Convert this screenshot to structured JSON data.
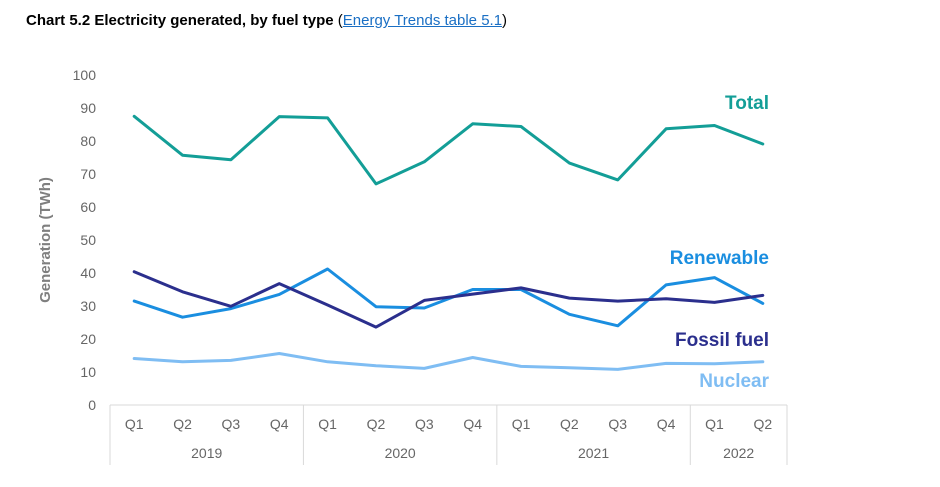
{
  "header": {
    "title_bold": "Chart 5.2 Electricity generated, by fuel type",
    "open_paren": " (",
    "link_text": "Energy Trends table 5.1",
    "close_paren": ")"
  },
  "chart_data": {
    "type": "line",
    "ylabel": "Generation (TWh)",
    "xlabel": "",
    "ylim": [
      0,
      100
    ],
    "yticks": [
      0,
      10,
      20,
      30,
      40,
      50,
      60,
      70,
      80,
      90,
      100
    ],
    "grid": false,
    "categories": [
      "Q1",
      "Q2",
      "Q3",
      "Q4",
      "Q1",
      "Q2",
      "Q3",
      "Q4",
      "Q1",
      "Q2",
      "Q3",
      "Q4",
      "Q1",
      "Q2"
    ],
    "years": [
      {
        "label": "2019",
        "count": 4
      },
      {
        "label": "2020",
        "count": 4
      },
      {
        "label": "2021",
        "count": 4
      },
      {
        "label": "2022",
        "count": 2
      }
    ],
    "series": [
      {
        "name": "Total",
        "color": "#139e97",
        "values": [
          87.5,
          75.7,
          74.3,
          87.4,
          87.0,
          67.0,
          73.7,
          85.2,
          84.4,
          73.3,
          68.2,
          83.7,
          84.7,
          79.1
        ]
      },
      {
        "name": "Renewable",
        "color": "#1a8ee0",
        "values": [
          31.5,
          26.6,
          29.2,
          33.5,
          41.2,
          29.8,
          29.4,
          35.0,
          35.0,
          27.5,
          24.0,
          36.4,
          38.6,
          30.8
        ]
      },
      {
        "name": "Fossil fuel",
        "color": "#2b2f8d",
        "values": [
          40.4,
          34.3,
          29.9,
          36.8,
          30.3,
          23.6,
          31.7,
          33.6,
          35.5,
          32.4,
          31.5,
          32.2,
          31.1,
          33.2
        ]
      },
      {
        "name": "Nuclear",
        "color": "#7fbdf3",
        "values": [
          14.1,
          13.1,
          13.5,
          15.6,
          13.1,
          11.9,
          11.1,
          14.4,
          11.7,
          11.3,
          10.8,
          12.6,
          12.5,
          13.1
        ]
      }
    ]
  }
}
